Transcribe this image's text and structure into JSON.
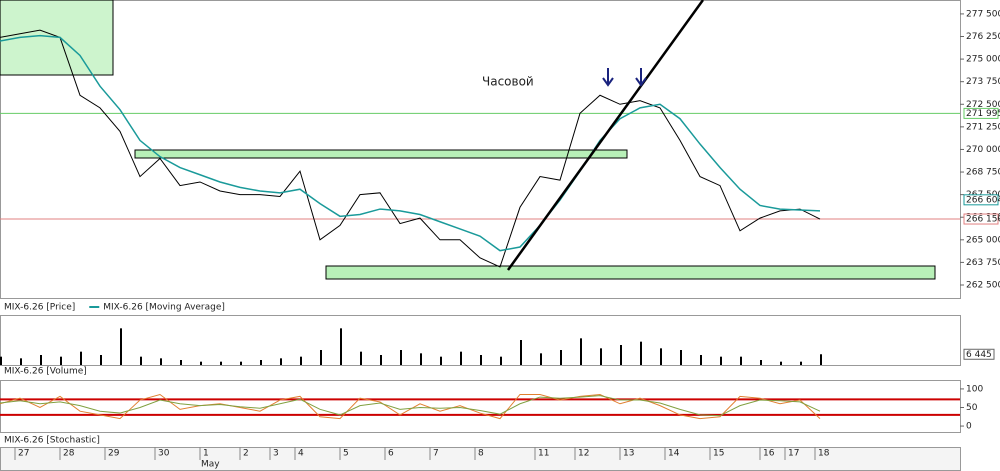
{
  "chart_data": [
    {
      "type": "line",
      "x": [
        0,
        4,
        8,
        12,
        16,
        20,
        24,
        28,
        32,
        36,
        40,
        44,
        48,
        52,
        56,
        60,
        64,
        68,
        72,
        76,
        80,
        84,
        88,
        92,
        96,
        100,
        104,
        108,
        112,
        116,
        120,
        124,
        128,
        132,
        136,
        140,
        144,
        148,
        152,
        156,
        160,
        164
      ],
      "series": [
        {
          "name": "MIX-6.26 [Price]",
          "color": "#000000",
          "values": [
            276200,
            276400,
            276600,
            276200,
            273000,
            272300,
            271000,
            268500,
            269500,
            268000,
            268200,
            267700,
            267500,
            267500,
            267400,
            268800,
            265000,
            265800,
            267500,
            267600,
            265900,
            266200,
            265000,
            265000,
            264000,
            263500,
            266800,
            268500,
            268300,
            272000,
            273000,
            272500,
            272700,
            272300,
            270500,
            268500,
            268000,
            265500,
            266200,
            266600,
            266700,
            266150
          ]
        },
        {
          "name": "MIX-6.26 [Moving Average]",
          "color": "#1a9a9a",
          "last_label": "266 604",
          "values": [
            276000,
            276200,
            276300,
            276200,
            275200,
            273500,
            272200,
            270500,
            269600,
            269000,
            268600,
            268200,
            267900,
            267700,
            267600,
            267800,
            267000,
            266300,
            266400,
            266700,
            266600,
            266400,
            266000,
            265600,
            265200,
            264400,
            264600,
            265800,
            267200,
            268800,
            270500,
            271700,
            272300,
            272500,
            271700,
            270300,
            269000,
            267800,
            266900,
            266700,
            266650,
            266604
          ]
        }
      ],
      "xlim": [
        0,
        192
      ],
      "ylim": [
        261780,
        278270
      ],
      "yticks": [
        {
          "value": 262500,
          "label": "262 500"
        },
        {
          "value": 263750,
          "label": "263 750"
        },
        {
          "value": 265000,
          "label": "265 000"
        },
        {
          "value": 266250,
          "label": "266 250"
        },
        {
          "value": 267500,
          "label": "267 500"
        },
        {
          "value": 268750,
          "label": "268 750"
        },
        {
          "value": 270000,
          "label": "270 000"
        },
        {
          "value": 271250,
          "label": "271 250"
        },
        {
          "value": 272500,
          "label": "272 500"
        },
        {
          "value": 273750,
          "label": "273 750"
        },
        {
          "value": 275000,
          "label": "275 000"
        },
        {
          "value": 276250,
          "label": "276 250"
        },
        {
          "value": 277500,
          "label": "277 500"
        }
      ],
      "hlines": [
        {
          "value": 271995,
          "label": "271 995",
          "color": "#66cc66"
        },
        {
          "value": 266150,
          "label": "266 150",
          "color": "#e08080"
        }
      ],
      "annotation": "Часовой"
    },
    {
      "type": "bar",
      "title": "MIX-6.26 [Volume]",
      "color": "#000000",
      "x": [
        0,
        4,
        8,
        12,
        16,
        20,
        24,
        28,
        32,
        36,
        40,
        44,
        48,
        52,
        56,
        60,
        64,
        68,
        72,
        76,
        80,
        84,
        88,
        92,
        96,
        100,
        104,
        108,
        112,
        116,
        120,
        124,
        128,
        132,
        136,
        140,
        144,
        148,
        152,
        156,
        160,
        164
      ],
      "values": [
        5000,
        4000,
        6000,
        5000,
        8000,
        6000,
        22000,
        5000,
        4000,
        3000,
        2000,
        2000,
        2000,
        3000,
        4000,
        5000,
        9000,
        22000,
        8000,
        6000,
        9000,
        7000,
        5000,
        8000,
        6000,
        5000,
        15000,
        7000,
        9000,
        16000,
        10000,
        12000,
        14000,
        10000,
        9000,
        6000,
        5000,
        5000,
        3000,
        2000,
        2000,
        6445
      ],
      "last_label": "6 445",
      "xlim": [
        0,
        192
      ],
      "ylim": [
        0,
        30000
      ]
    },
    {
      "type": "line",
      "title": "MIX-6.26 [Stochastic]",
      "x": [
        0,
        4,
        8,
        12,
        16,
        20,
        24,
        28,
        32,
        36,
        40,
        44,
        48,
        52,
        56,
        60,
        64,
        68,
        72,
        76,
        80,
        84,
        88,
        92,
        96,
        100,
        104,
        108,
        112,
        116,
        120,
        124,
        128,
        132,
        136,
        140,
        144,
        148,
        152,
        156,
        160,
        164
      ],
      "series": [
        {
          "color": "#e08030",
          "values": [
            60,
            75,
            50,
            80,
            40,
            30,
            20,
            70,
            85,
            45,
            55,
            60,
            50,
            40,
            70,
            80,
            25,
            20,
            75,
            65,
            30,
            60,
            40,
            55,
            35,
            20,
            85,
            85,
            70,
            80,
            85,
            60,
            75,
            55,
            30,
            20,
            25,
            80,
            75,
            60,
            70,
            20
          ]
        },
        {
          "color": "#80a040",
          "values": [
            62,
            68,
            60,
            65,
            55,
            40,
            35,
            50,
            70,
            60,
            55,
            58,
            52,
            48,
            60,
            72,
            45,
            30,
            55,
            62,
            45,
            50,
            48,
            50,
            42,
            32,
            60,
            78,
            75,
            78,
            82,
            70,
            70,
            62,
            45,
            30,
            28,
            55,
            70,
            68,
            65,
            40
          ]
        }
      ],
      "xlim": [
        0,
        192
      ],
      "ylim": [
        -16,
        124
      ],
      "yticks": [
        0,
        50,
        100
      ],
      "hlines": [
        {
          "value": 72,
          "color": "#cc0000"
        },
        {
          "value": 30,
          "color": "#cc0000"
        }
      ],
      "xticks": [
        {
          "value": 3,
          "label": "27"
        },
        {
          "value": 12,
          "label": "28"
        },
        {
          "value": 21,
          "label": "29"
        },
        {
          "value": 31,
          "label": "30"
        },
        {
          "value": 40,
          "label": "1"
        },
        {
          "value": 48,
          "label": "2"
        },
        {
          "value": 54,
          "label": "3"
        },
        {
          "value": 59,
          "label": "4"
        },
        {
          "value": 68,
          "label": "5"
        },
        {
          "value": 77,
          "label": "6"
        },
        {
          "value": 86,
          "label": "7"
        },
        {
          "value": 95,
          "label": "8"
        },
        {
          "value": 107,
          "label": "11"
        },
        {
          "value": 115,
          "label": "12"
        },
        {
          "value": 124,
          "label": "13"
        },
        {
          "value": 133,
          "label": "14"
        },
        {
          "value": 142,
          "label": "15"
        },
        {
          "value": 152,
          "label": "16"
        },
        {
          "value": 157,
          "label": "17"
        },
        {
          "value": 163,
          "label": "18"
        }
      ],
      "month": "May"
    }
  ]
}
